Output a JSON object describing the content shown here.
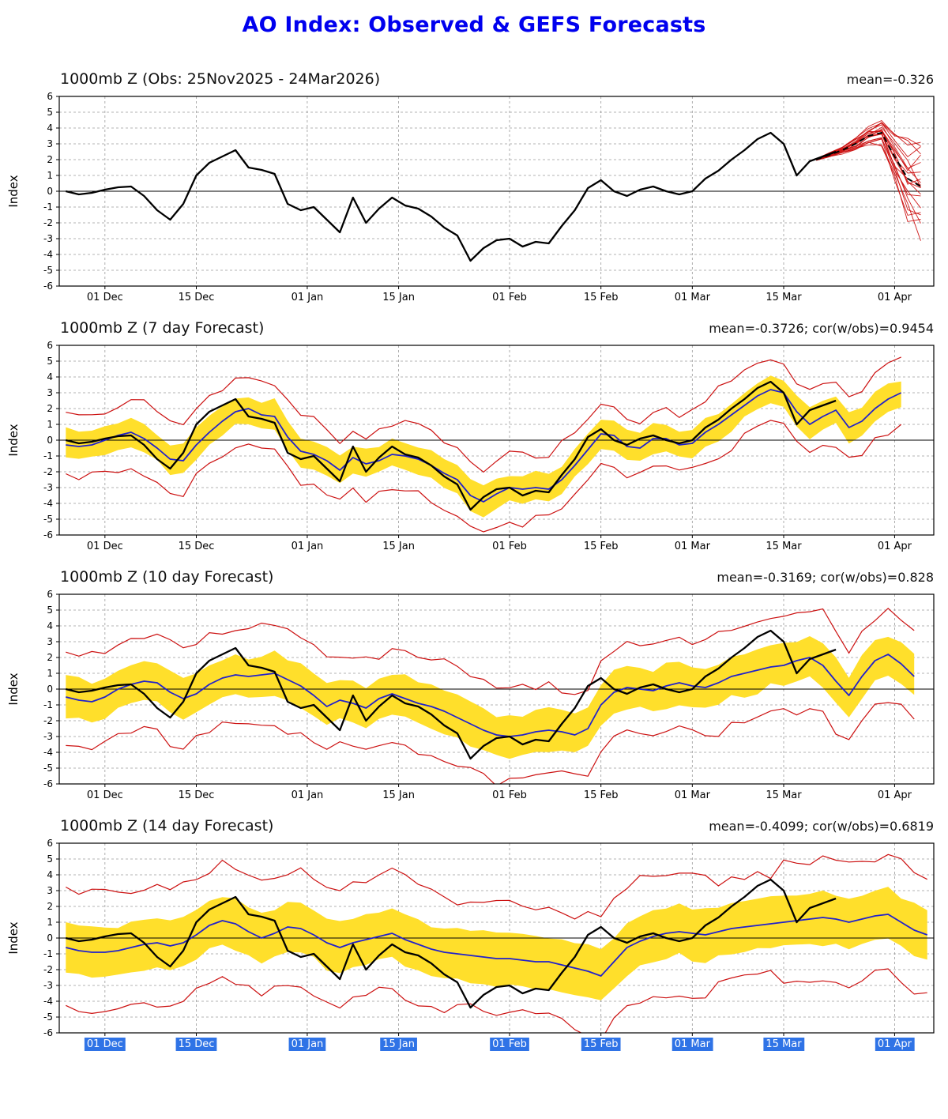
{
  "page": {
    "title": "AO Index: Observed & GEFS Forecasts"
  },
  "colors": {
    "title": "#0000ee",
    "observed": "#000000",
    "forecast_mean": "#2121cc",
    "envelope_red": "#cc1111",
    "band_yellow": "#ffdf2b",
    "grid": "#9a9a9a",
    "selection": "#2f73e6"
  },
  "axis": {
    "ylabel": "Index",
    "ylim": [
      -6,
      6
    ],
    "yticks": [
      6,
      5,
      4,
      3,
      2,
      1,
      0,
      -1,
      -2,
      -3,
      -4,
      -5,
      -6
    ],
    "xdomain": [
      -1,
      133
    ],
    "xticks": [
      {
        "day": 6,
        "label": "01 Dec"
      },
      {
        "day": 20,
        "label": "15 Dec"
      },
      {
        "day": 37,
        "label": "01 Jan"
      },
      {
        "day": 51,
        "label": "15 Jan"
      },
      {
        "day": 68,
        "label": "01 Feb"
      },
      {
        "day": 82,
        "label": "15 Feb"
      },
      {
        "day": 96,
        "label": "01 Mar"
      },
      {
        "day": 110,
        "label": "15 Mar"
      },
      {
        "day": 127,
        "label": "01 Apr"
      }
    ],
    "grid": true
  },
  "chart_data": [
    {
      "type": "line",
      "title": "1000mb Z (Obs: 25Nov2025 - 24Mar2026)",
      "stats": "mean=-0.326",
      "ylabel": "Index",
      "ylim": [
        -6,
        6
      ],
      "series": [
        {
          "name": "observed",
          "color": "#000000",
          "x_start_day": 0,
          "x_step_days": 2,
          "values": [
            0.0,
            -0.2,
            -0.1,
            0.1,
            0.25,
            0.3,
            -0.3,
            -1.2,
            -1.8,
            -0.8,
            1.0,
            1.8,
            2.2,
            2.6,
            1.5,
            1.35,
            1.1,
            -0.8,
            -1.2,
            -1.0,
            -1.8,
            -2.6,
            -0.4,
            -2.0,
            -1.1,
            -0.4,
            -0.9,
            -1.1,
            -1.6,
            -2.3,
            -2.8,
            -4.4,
            -3.6,
            -3.1,
            -3.0,
            -3.5,
            -3.2,
            -3.3,
            -2.2,
            -1.2,
            0.2,
            0.7,
            0.0,
            -0.3,
            0.1,
            0.3,
            0.0,
            -0.2,
            0.0,
            0.8,
            1.3,
            2.0,
            2.6,
            3.3,
            3.7,
            3.0,
            1.0,
            1.9,
            2.2,
            2.5
          ]
        }
      ],
      "ensemble": {
        "color": "#cc1111",
        "members": 20,
        "x_days": [
          115,
          117,
          119,
          121,
          123,
          125,
          127,
          129,
          131
        ],
        "mean": [
          2.0,
          2.3,
          2.6,
          3.0,
          3.5,
          3.7,
          2.2,
          0.8,
          0.3
        ],
        "spread": [
          0.05,
          0.12,
          0.2,
          0.35,
          0.5,
          0.7,
          1.5,
          2.2,
          2.9
        ]
      }
    },
    {
      "type": "line",
      "title": "1000mb Z (7 day Forecast)",
      "stats": "mean=-0.3726; cor(w/obs)=0.9454",
      "ylabel": "Index",
      "ylim": [
        -6,
        6
      ],
      "band": {
        "halfwidth": 0.9,
        "color": "#ffdf2b"
      },
      "envelope": {
        "halfwidth": 2.0,
        "color": "#cc1111"
      },
      "series": [
        {
          "name": "observed",
          "color": "#000000",
          "x_start_day": 0,
          "x_step_days": 2,
          "values": [
            0.0,
            -0.2,
            -0.1,
            0.1,
            0.25,
            0.3,
            -0.3,
            -1.2,
            -1.8,
            -0.8,
            1.0,
            1.8,
            2.2,
            2.6,
            1.5,
            1.35,
            1.1,
            -0.8,
            -1.2,
            -1.0,
            -1.8,
            -2.6,
            -0.4,
            -2.0,
            -1.1,
            -0.4,
            -0.9,
            -1.1,
            -1.6,
            -2.3,
            -2.8,
            -4.4,
            -3.6,
            -3.1,
            -3.0,
            -3.5,
            -3.2,
            -3.3,
            -2.2,
            -1.2,
            0.2,
            0.7,
            0.0,
            -0.3,
            0.1,
            0.3,
            0.0,
            -0.2,
            0.0,
            0.8,
            1.3,
            2.0,
            2.6,
            3.3,
            3.7,
            3.0,
            1.0,
            1.9,
            2.2,
            2.5
          ]
        },
        {
          "name": "forecast_mean",
          "color": "#2121cc",
          "x_start_day": 0,
          "x_step_days": 2,
          "values": [
            -0.3,
            -0.4,
            -0.3,
            0.0,
            0.3,
            0.5,
            0.1,
            -0.5,
            -1.2,
            -1.3,
            -0.3,
            0.5,
            1.2,
            1.8,
            2.0,
            1.6,
            1.5,
            0.2,
            -0.7,
            -0.9,
            -1.3,
            -1.9,
            -1.1,
            -1.5,
            -1.3,
            -0.9,
            -1.0,
            -1.2,
            -1.6,
            -2.1,
            -2.5,
            -3.5,
            -3.9,
            -3.4,
            -3.0,
            -3.1,
            -3.0,
            -3.1,
            -2.5,
            -1.6,
            -0.6,
            0.4,
            0.3,
            -0.4,
            -0.5,
            0.1,
            0.1,
            -0.3,
            -0.2,
            0.5,
            1.0,
            1.6,
            2.2,
            2.8,
            3.2,
            3.0,
            1.8,
            1.0,
            1.5,
            1.9,
            0.8,
            1.2,
            2.0,
            2.6,
            3.0
          ]
        }
      ]
    },
    {
      "type": "line",
      "title": "1000mb Z (10 day Forecast)",
      "stats": "mean=-0.3169; cor(w/obs)=0.828",
      "ylabel": "Index",
      "ylim": [
        -6,
        6
      ],
      "band": {
        "halfwidth": 1.3,
        "color": "#ffdf2b"
      },
      "envelope": {
        "halfwidth": 2.9,
        "color": "#cc1111"
      },
      "series": [
        {
          "name": "observed",
          "color": "#000000",
          "x_start_day": 0,
          "x_step_days": 2,
          "values": [
            0.0,
            -0.2,
            -0.1,
            0.1,
            0.25,
            0.3,
            -0.3,
            -1.2,
            -1.8,
            -0.8,
            1.0,
            1.8,
            2.2,
            2.6,
            1.5,
            1.35,
            1.1,
            -0.8,
            -1.2,
            -1.0,
            -1.8,
            -2.6,
            -0.4,
            -2.0,
            -1.1,
            -0.4,
            -0.9,
            -1.1,
            -1.6,
            -2.3,
            -2.8,
            -4.4,
            -3.6,
            -3.1,
            -3.0,
            -3.5,
            -3.2,
            -3.3,
            -2.2,
            -1.2,
            0.2,
            0.7,
            0.0,
            -0.3,
            0.1,
            0.3,
            0.0,
            -0.2,
            0.0,
            0.8,
            1.3,
            2.0,
            2.6,
            3.3,
            3.7,
            3.0,
            1.0,
            1.9,
            2.2,
            2.5
          ]
        },
        {
          "name": "forecast_mean",
          "color": "#2121cc",
          "x_start_day": 0,
          "x_step_days": 2,
          "values": [
            -0.5,
            -0.7,
            -0.8,
            -0.5,
            0.0,
            0.3,
            0.5,
            0.4,
            -0.2,
            -0.6,
            -0.3,
            0.3,
            0.7,
            0.9,
            0.8,
            0.9,
            1.0,
            0.6,
            0.2,
            -0.4,
            -1.1,
            -0.7,
            -0.9,
            -1.2,
            -0.6,
            -0.3,
            -0.6,
            -0.9,
            -1.1,
            -1.4,
            -1.8,
            -2.2,
            -2.6,
            -2.9,
            -3.0,
            -2.9,
            -2.7,
            -2.6,
            -2.7,
            -2.9,
            -2.5,
            -1.0,
            -0.2,
            0.1,
            0.0,
            -0.1,
            0.2,
            0.4,
            0.2,
            0.1,
            0.4,
            0.8,
            1.0,
            1.2,
            1.4,
            1.5,
            1.8,
            2.0,
            1.5,
            0.5,
            -0.4,
            0.8,
            1.8,
            2.2,
            1.6,
            0.8
          ]
        }
      ]
    },
    {
      "type": "line",
      "title": "1000mb Z (14 day Forecast)",
      "stats": "mean=-0.4099; cor(w/obs)=0.6819",
      "ylabel": "Index",
      "ylim": [
        -6,
        6
      ],
      "x_labels_highlighted": true,
      "band": {
        "halfwidth": 1.6,
        "color": "#ffdf2b"
      },
      "envelope": {
        "halfwidth": 3.5,
        "color": "#cc1111"
      },
      "series": [
        {
          "name": "observed",
          "color": "#000000",
          "x_start_day": 0,
          "x_step_days": 2,
          "values": [
            0.0,
            -0.2,
            -0.1,
            0.1,
            0.25,
            0.3,
            -0.3,
            -1.2,
            -1.8,
            -0.8,
            1.0,
            1.8,
            2.2,
            2.6,
            1.5,
            1.35,
            1.1,
            -0.8,
            -1.2,
            -1.0,
            -1.8,
            -2.6,
            -0.4,
            -2.0,
            -1.1,
            -0.4,
            -0.9,
            -1.1,
            -1.6,
            -2.3,
            -2.8,
            -4.4,
            -3.6,
            -3.1,
            -3.0,
            -3.5,
            -3.2,
            -3.3,
            -2.2,
            -1.2,
            0.2,
            0.7,
            0.0,
            -0.3,
            0.1,
            0.3,
            0.0,
            -0.2,
            0.0,
            0.8,
            1.3,
            2.0,
            2.6,
            3.3,
            3.7,
            3.0,
            1.0,
            1.9,
            2.2,
            2.5
          ]
        },
        {
          "name": "forecast_mean",
          "color": "#2121cc",
          "x_start_day": 0,
          "x_step_days": 2,
          "values": [
            -0.6,
            -0.8,
            -0.9,
            -0.9,
            -0.8,
            -0.6,
            -0.4,
            -0.3,
            -0.5,
            -0.3,
            0.2,
            0.8,
            1.1,
            0.9,
            0.4,
            0.0,
            0.3,
            0.7,
            0.6,
            0.2,
            -0.3,
            -0.6,
            -0.3,
            -0.1,
            0.1,
            0.3,
            -0.1,
            -0.4,
            -0.7,
            -0.9,
            -1.0,
            -1.1,
            -1.2,
            -1.3,
            -1.3,
            -1.4,
            -1.5,
            -1.5,
            -1.7,
            -1.9,
            -2.1,
            -2.4,
            -1.5,
            -0.6,
            -0.2,
            0.1,
            0.3,
            0.4,
            0.3,
            0.2,
            0.4,
            0.6,
            0.7,
            0.8,
            0.9,
            1.0,
            1.1,
            1.2,
            1.3,
            1.2,
            1.0,
            1.2,
            1.4,
            1.5,
            1.0,
            0.5,
            0.2
          ]
        }
      ]
    }
  ]
}
